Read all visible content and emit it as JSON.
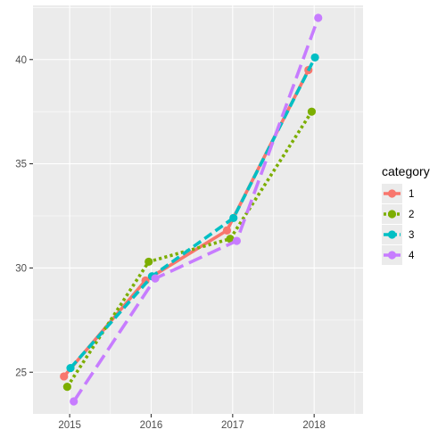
{
  "chart_data": {
    "type": "line",
    "x": [
      "2015",
      "2016",
      "2017",
      "2018"
    ],
    "xlim": [
      2014.55,
      2018.6
    ],
    "ylim": [
      23.0,
      42.6
    ],
    "yticks": [
      25,
      30,
      35,
      40
    ],
    "grid": true,
    "legend": {
      "title": "category",
      "position": "right"
    },
    "series": [
      {
        "name": "1",
        "color": "#F8766D",
        "dash": "solid",
        "x": [
          2014.93,
          2015.93,
          2016.93,
          2017.93
        ],
        "values": [
          24.8,
          29.4,
          31.8,
          39.5
        ]
      },
      {
        "name": "2",
        "color": "#7CAE00",
        "dash": "dotted",
        "x": [
          2014.97,
          2015.97,
          2016.97,
          2017.97
        ],
        "values": [
          24.3,
          30.3,
          31.4,
          37.5
        ]
      },
      {
        "name": "3",
        "color": "#00BFC4",
        "dash": "dashed",
        "x": [
          2015.01,
          2016.01,
          2017.01,
          2018.01
        ],
        "values": [
          25.2,
          29.6,
          32.4,
          40.1
        ]
      },
      {
        "name": "4",
        "color": "#C77CFF",
        "dash": "longdash",
        "x": [
          2015.05,
          2016.05,
          2017.05,
          2018.05
        ],
        "values": [
          23.6,
          29.5,
          31.3,
          42.0
        ]
      }
    ]
  }
}
